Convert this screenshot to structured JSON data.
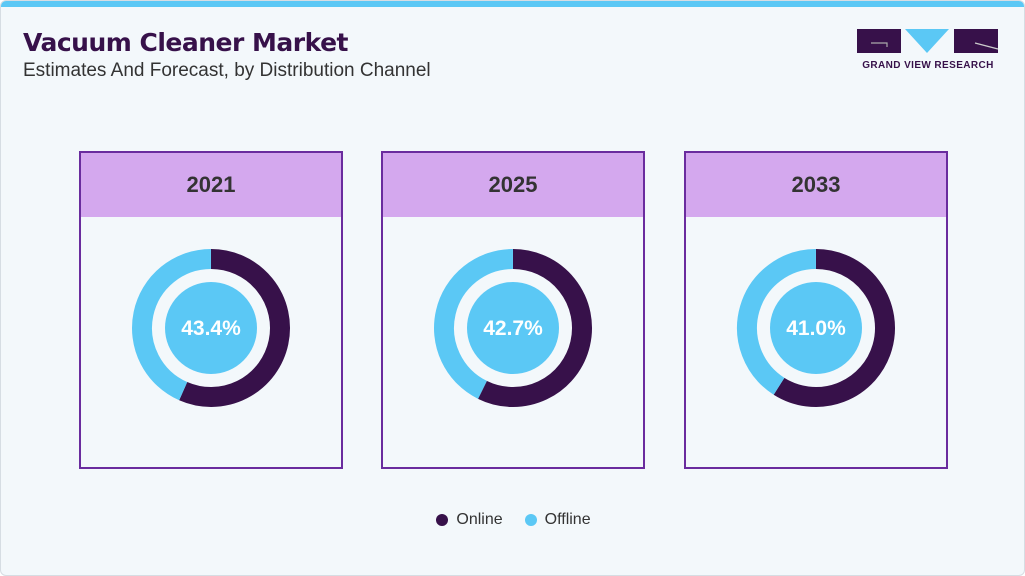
{
  "header": {
    "title": "Vacuum Cleaner Market",
    "subtitle": "Estimates And Forecast, by Distribution Channel"
  },
  "logo": {
    "text": "GRAND VIEW RESEARCH"
  },
  "colors": {
    "online": "#37114A",
    "offline": "#5BC8F5",
    "accent": "#5BC8F5",
    "card_border": "#6A2C9E",
    "card_header": "#D4A8EE"
  },
  "chart_data": {
    "type": "pie",
    "variant": "donut",
    "series_names": [
      "Online",
      "Offline"
    ],
    "panels": [
      {
        "year": "2021",
        "label": "43.4%",
        "offline": 43.4,
        "online": 56.6
      },
      {
        "year": "2025",
        "label": "42.7%",
        "offline": 42.7,
        "online": 57.3
      },
      {
        "year": "2033",
        "label": "41.0%",
        "offline": 41.0,
        "online": 59.0
      }
    ],
    "legend": {
      "position": "bottom",
      "items": [
        "Online",
        "Offline"
      ]
    }
  }
}
